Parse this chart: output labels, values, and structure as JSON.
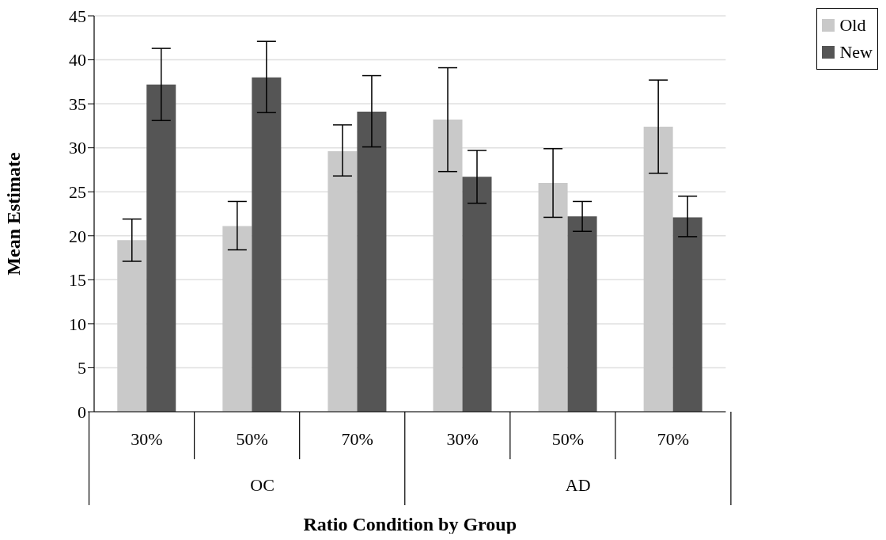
{
  "chart_data": {
    "type": "bar",
    "xlabel": "Ratio Condition by Group",
    "ylabel": "Mean Estimate",
    "categories": [
      "30%",
      "50%",
      "70%",
      "30%",
      "50%",
      "70%"
    ],
    "annotations": [
      "OC",
      "AD"
    ],
    "series": [
      {
        "name": "Old",
        "color": "#c9c9c9",
        "values": [
          19.5,
          21.1,
          29.6,
          33.2,
          26.0,
          32.4
        ],
        "errors": [
          [
            17.1,
            21.9
          ],
          [
            18.4,
            23.9
          ],
          [
            26.8,
            32.6
          ],
          [
            27.3,
            39.1
          ],
          [
            22.1,
            29.9
          ],
          [
            27.1,
            37.7
          ]
        ]
      },
      {
        "name": "New",
        "color": "#555555",
        "values": [
          37.2,
          38.0,
          34.1,
          26.7,
          22.2,
          22.1
        ],
        "errors": [
          [
            33.1,
            41.3
          ],
          [
            34.0,
            42.1
          ],
          [
            30.1,
            38.2
          ],
          [
            23.7,
            29.7
          ],
          [
            20.5,
            23.9
          ],
          [
            19.9,
            24.5
          ]
        ]
      }
    ],
    "ylim": [
      0,
      45
    ],
    "yticks": [
      0,
      5,
      10,
      15,
      20,
      25,
      30,
      35,
      40,
      45
    ],
    "grid": "y",
    "legend": "top right"
  }
}
